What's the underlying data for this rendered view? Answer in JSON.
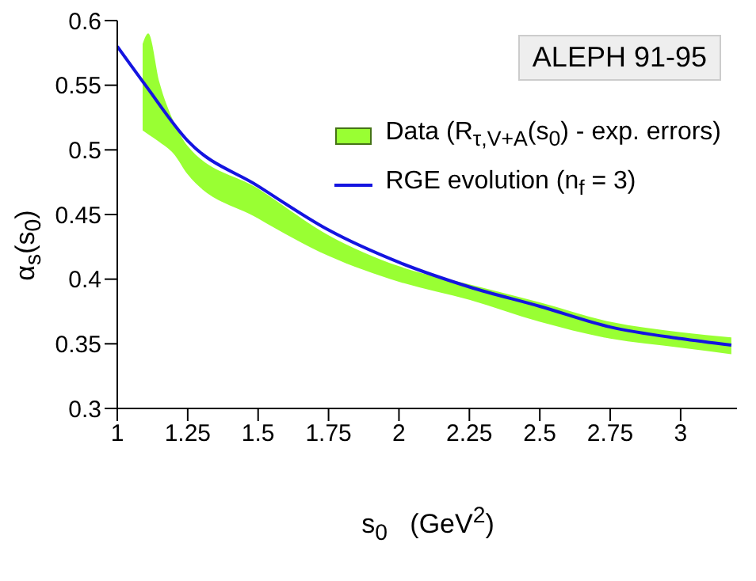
{
  "chart_data": {
    "type": "line",
    "xlabel": "s$_{0}$   (GeV$^{2}$)",
    "ylabel": "α$_{s}$(s$_{0}$)",
    "xlim": [
      1,
      3.2
    ],
    "ylim": [
      0.3,
      0.6
    ],
    "xticks": [
      1,
      1.25,
      1.5,
      1.75,
      2,
      2.25,
      2.5,
      2.75,
      3
    ],
    "yticks": [
      0.3,
      0.35,
      0.4,
      0.45,
      0.5,
      0.55,
      0.6
    ],
    "grid": false,
    "legend": "top right",
    "annotations": [
      "ALEPH 91-95"
    ],
    "series": [
      {
        "name": "Data (R$_{τ,V+A}$(s$_{0}$) - exp. errors)",
        "type": "area",
        "color": "#99ff33",
        "x": [
          1.09,
          1.11,
          1.15,
          1.2,
          1.25,
          1.5,
          1.75,
          2,
          2.25,
          2.5,
          2.75,
          3,
          3.18
        ],
        "values": [
          null,
          null,
          null,
          null,
          null,
          null,
          null,
          null,
          null,
          null,
          null,
          null,
          null
        ],
        "lower": [
          0.515,
          0.512,
          0.506,
          0.497,
          0.481,
          0.447,
          0.418,
          0.398,
          0.384,
          0.367,
          0.354,
          0.347,
          0.342
        ],
        "upper": [
          0.582,
          0.59,
          0.552,
          0.522,
          0.503,
          0.47,
          0.434,
          0.41,
          0.396,
          0.382,
          0.367,
          0.359,
          0.355
        ]
      },
      {
        "name": "RGE evolution (n$_{f}$ = 3)",
        "color": "#1414e0",
        "x": [
          1,
          1.1,
          1.25,
          1.5,
          1.75,
          2,
          2.25,
          2.5,
          2.75,
          3,
          3.18
        ],
        "values": [
          0.58,
          0.55,
          0.507,
          0.472,
          0.438,
          0.413,
          0.394,
          0.379,
          0.363,
          0.354,
          0.349
        ]
      }
    ]
  }
}
